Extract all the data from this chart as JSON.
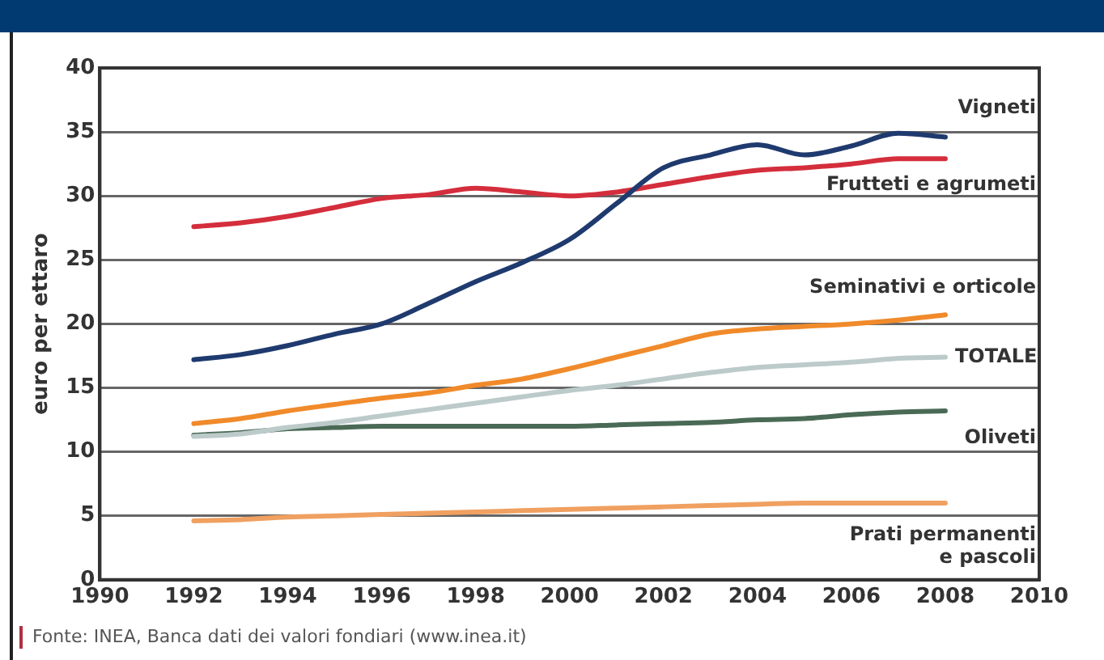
{
  "chart_data": {
    "type": "line",
    "ylabel": "euro per ettaro",
    "xlim": [
      1990,
      2010
    ],
    "xticks": [
      1990,
      1992,
      1994,
      1996,
      1998,
      2000,
      2002,
      2004,
      2006,
      2008,
      2010
    ],
    "ylim": [
      0,
      40
    ],
    "yticks": [
      0,
      5,
      10,
      15,
      20,
      25,
      30,
      35,
      40
    ],
    "grid": "y",
    "legend": false,
    "marker": "none",
    "line_style": "solid",
    "x": [
      1992,
      1993,
      1994,
      1995,
      1996,
      1997,
      1998,
      1999,
      2000,
      2001,
      2002,
      2003,
      2004,
      2005,
      2006,
      2007,
      2008
    ],
    "series": [
      {
        "name": "Vigneti",
        "color": "#1f3a6e",
        "values": [
          17.2,
          17.6,
          18.3,
          19.2,
          20.0,
          21.6,
          23.3,
          24.8,
          26.6,
          29.4,
          32.2,
          33.2,
          34.0,
          33.2,
          33.9,
          34.9,
          34.6
        ]
      },
      {
        "name": "Frutteti e agrumeti",
        "color": "#d42e3c",
        "values": [
          27.6,
          27.9,
          28.4,
          29.1,
          29.8,
          30.1,
          30.6,
          30.3,
          30.0,
          30.3,
          30.9,
          31.5,
          32.0,
          32.2,
          32.5,
          32.9,
          32.9
        ]
      },
      {
        "name": "Seminativi e orticole",
        "color": "#f08a2a",
        "values": [
          12.2,
          12.6,
          13.2,
          13.7,
          14.2,
          14.6,
          15.2,
          15.7,
          16.5,
          17.4,
          18.3,
          19.2,
          19.6,
          19.8,
          20.0,
          20.3,
          20.7
        ]
      },
      {
        "name": "TOTALE",
        "color": "#bccaca",
        "values": [
          11.2,
          11.4,
          11.9,
          12.3,
          12.8,
          13.3,
          13.8,
          14.3,
          14.8,
          15.2,
          15.7,
          16.2,
          16.6,
          16.8,
          17.0,
          17.3,
          17.4
        ]
      },
      {
        "name": "Oliveti",
        "color": "#4a6a55",
        "values": [
          11.3,
          11.5,
          11.8,
          11.9,
          12.0,
          12.0,
          12.0,
          12.0,
          12.0,
          12.1,
          12.2,
          12.3,
          12.5,
          12.6,
          12.9,
          13.1,
          13.2
        ]
      },
      {
        "name": "Prati permanenti\ne pascoli",
        "color": "#f0a060",
        "values": [
          4.6,
          4.7,
          4.9,
          5.0,
          5.1,
          5.2,
          5.3,
          5.4,
          5.5,
          5.6,
          5.7,
          5.8,
          5.9,
          6.0,
          6.0,
          6.0,
          6.0
        ]
      }
    ],
    "annotations": [
      "Fonte: INEA, Banca dati dei valori fondiari (www.inea.it)"
    ]
  }
}
